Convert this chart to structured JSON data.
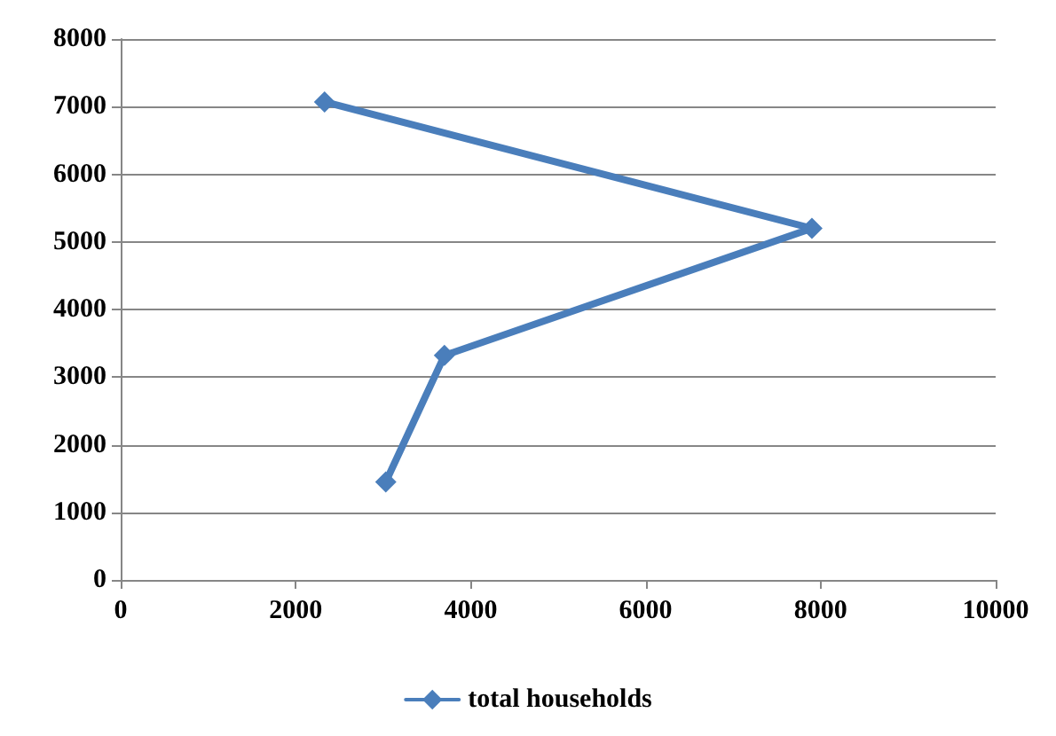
{
  "chart_data": {
    "type": "line",
    "x": [
      3030,
      3700,
      7900,
      2330
    ],
    "series": [
      {
        "name": "total households",
        "color": "#4a7ebb",
        "values": [
          1450,
          3320,
          5200,
          7070
        ]
      }
    ],
    "xlim": [
      0,
      10000
    ],
    "xticks": [
      0,
      2000,
      4000,
      6000,
      8000,
      10000
    ],
    "ylim": [
      0,
      8000
    ],
    "yticks": [
      0,
      1000,
      2000,
      3000,
      4000,
      5000,
      6000,
      7000,
      8000
    ],
    "grid": "y",
    "legend": "bottom",
    "marker": "diamond",
    "line_style": "solid"
  }
}
